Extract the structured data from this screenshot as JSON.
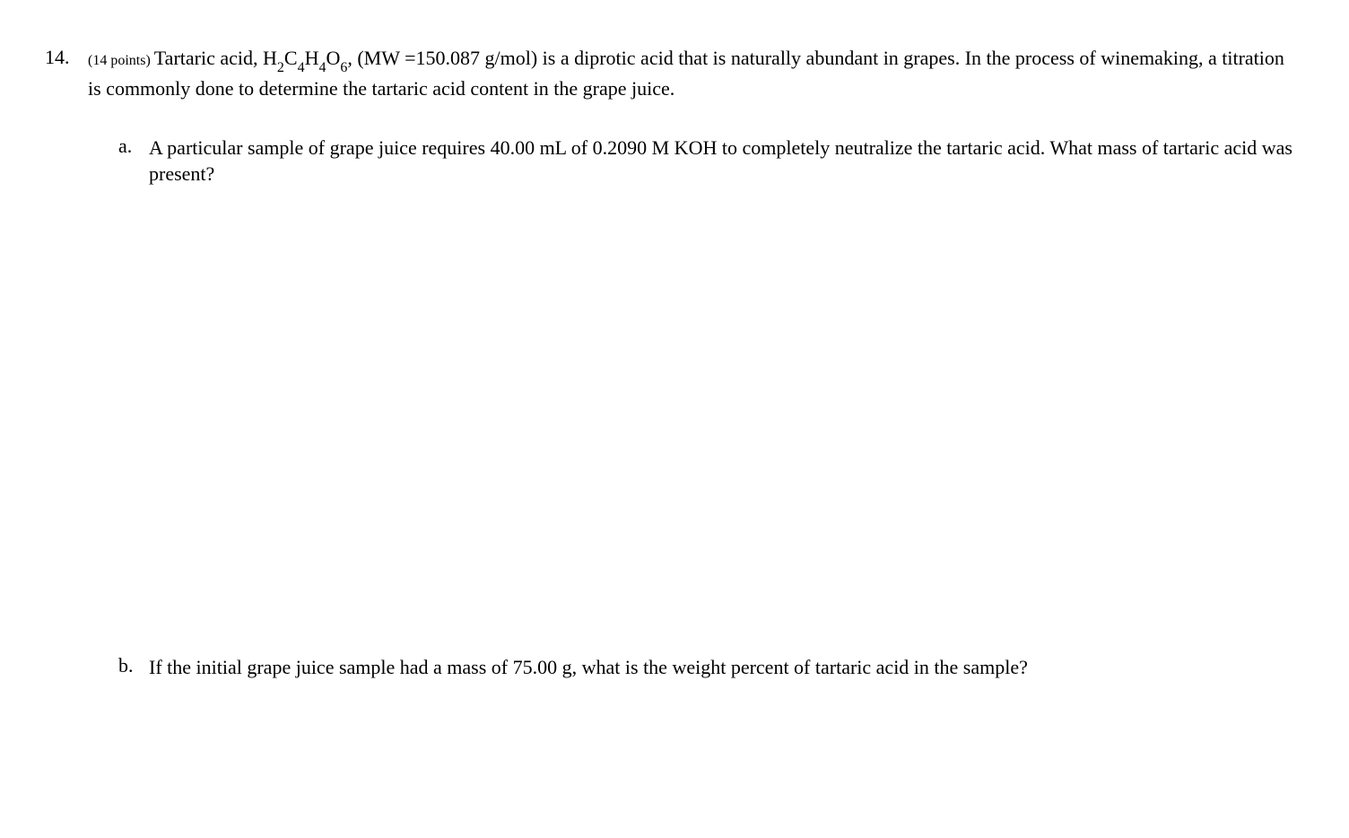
{
  "question": {
    "number": "14.",
    "points_label": "(14 points) ",
    "intro_pre": "Tartaric acid, H",
    "sub1": "2",
    "intro_mid1": "C",
    "sub2": "4",
    "intro_mid2": "H",
    "sub3": "4",
    "intro_mid3": "O",
    "sub4": "6",
    "intro_post": ", (MW =150.087 g/mol) is a diprotic acid that is naturally abundant in grapes. In the process of winemaking, a titration is commonly done to determine the tartaric acid content in the grape juice.",
    "parts": {
      "a": {
        "letter": "a.",
        "text": "A particular sample of grape juice requires 40.00 mL of 0.2090 M KOH to completely neutralize the tartaric acid.  What mass of tartaric acid was present?"
      },
      "b": {
        "letter": "b.",
        "text": "If the initial grape juice sample had a mass of 75.00 g, what is the weight percent of tartaric acid in the sample?"
      }
    }
  },
  "style": {
    "text_color": "#000000",
    "background_color": "#ffffff",
    "body_fontsize": 22,
    "points_fontsize": 16,
    "sub_fontsize": 16,
    "font_family": "Times New Roman"
  }
}
